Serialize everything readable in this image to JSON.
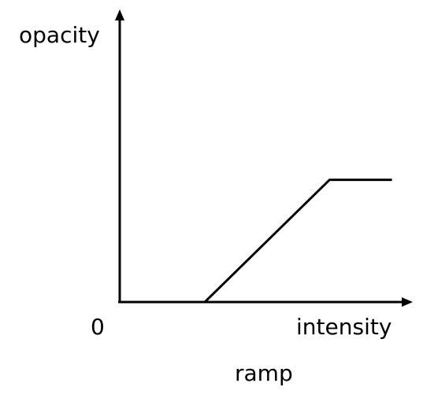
{
  "diagram": {
    "y_axis_label": "opacity",
    "x_axis_label": "intensity",
    "origin_label": "0",
    "caption": "ramp",
    "line_color": "#000000"
  },
  "chart_data": {
    "type": "line",
    "title": "",
    "xlabel": "intensity",
    "ylabel": "opacity",
    "series": [
      {
        "x": [
          0,
          0.3,
          0.74,
          0.96
        ],
        "values": [
          0,
          0,
          0.67,
          0.67
        ]
      }
    ],
    "xlim": [
      0,
      1
    ],
    "ylim": [
      0,
      1
    ],
    "grid": false
  }
}
